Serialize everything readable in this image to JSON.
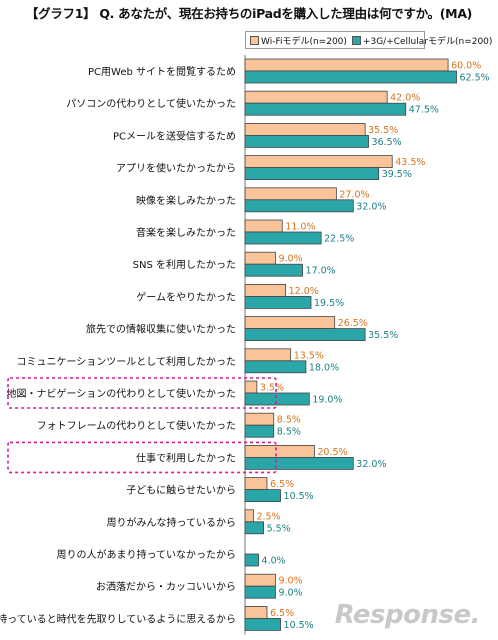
{
  "chart_data": {
    "type": "bar",
    "orientation": "horizontal",
    "title": "【グラフ1】 Q. あなたが、現在お持ちのiPadを購入した理由は何ですか。(MA)",
    "xlabel": "",
    "ylabel": "",
    "xlim": [
      0,
      65
    ],
    "legend_position": "top-right",
    "value_suffix": "%",
    "categories": [
      "PC用Web サイトを閲覧するため",
      "パソコンの代わりとして使いたかった",
      "PCメールを送受信するため",
      "アプリを使いたかったから",
      "映像を楽しみたかった",
      "音楽を楽しみたかった",
      "SNS を利用したかった",
      "ゲームをやりたかった",
      "旅先での情報収集に使いたかった",
      "コミュニケーションツールとして利用したかった",
      "地図・ナビゲーションの代わりとして使いたかった",
      "フォトフレームの代わりとして使いたかった",
      "仕事で利用したかった",
      "子どもに触らせたいから",
      "周りがみんな持っているから",
      "周りの人があまり持っていなかったから",
      "お洒落だから・カッコいいから",
      "持っていると時代を先取りしているように思えるから"
    ],
    "series": [
      {
        "name": "Wi-Fiモデル(n=200)",
        "color": "#f9c49a",
        "label_color": "#d9741c",
        "values": [
          60.0,
          42.0,
          35.5,
          43.5,
          27.0,
          11.0,
          9.0,
          12.0,
          26.5,
          13.5,
          3.5,
          8.5,
          20.5,
          6.5,
          2.5,
          0.0,
          9.0,
          6.5
        ],
        "labels": [
          "60.0%",
          "42.0%",
          "35.5%",
          "43.5%",
          "27.0%",
          "11.0%",
          "9.0%",
          "12.0%",
          "26.5%",
          "13.5%",
          "3.5%",
          "8.5%",
          "20.5%",
          "6.5%",
          "2.5%",
          "",
          "9.0%",
          "6.5%"
        ]
      },
      {
        "name": "+3G/+Cellularモデル(n=200)",
        "color": "#2aa6a9",
        "label_color": "#1e7f86",
        "values": [
          62.5,
          47.5,
          36.5,
          39.5,
          32.0,
          22.5,
          17.0,
          19.5,
          35.5,
          18.0,
          19.0,
          8.5,
          32.0,
          10.5,
          5.5,
          4.0,
          9.0,
          10.5
        ],
        "labels": [
          "62.5%",
          "47.5%",
          "36.5%",
          "39.5%",
          "32.0%",
          "22.5%",
          "17.0%",
          "19.5%",
          "35.5%",
          "18.0%",
          "19.0%",
          "8.5%",
          "32.0%",
          "10.5%",
          "5.5%",
          "4.0%",
          "9.0%",
          "10.5%"
        ]
      }
    ],
    "highlighted_categories": [
      10,
      12
    ],
    "highlight_color": "#d81b9a"
  },
  "watermark": "Response."
}
